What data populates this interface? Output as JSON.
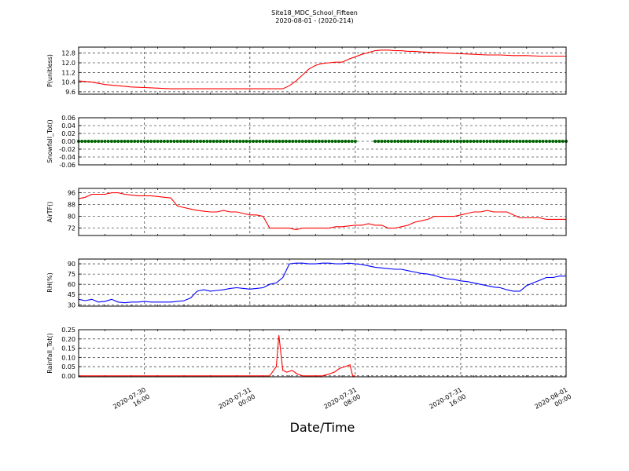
{
  "title": "Site18_MDC_School_Fifteen",
  "subtitle": "2020-08-01 - (2020-214)",
  "xlabel": "Date/Time",
  "x_ticks": [
    {
      "line1": "2020-07-30",
      "line2": "16:00",
      "t": 16
    },
    {
      "line1": "2020-07-31",
      "line2": "00:00",
      "t": 24
    },
    {
      "line1": "2020-07-31",
      "line2": "08:00",
      "t": 32
    },
    {
      "line1": "2020-07-31",
      "line2": "16:00",
      "t": 40
    },
    {
      "line1": "2020-08-01",
      "line2": "00:00",
      "t": 48
    }
  ],
  "chart_data": [
    {
      "type": "line",
      "ylabel": "P(unitless)",
      "xlim": [
        11,
        48
      ],
      "ylim": [
        9.4,
        13.3
      ],
      "yticks": [
        9.6,
        10.4,
        11.2,
        12.0,
        12.8
      ],
      "color": "#ff0000",
      "series": [
        {
          "x": [
            11,
            12,
            13,
            14,
            15,
            16,
            17,
            18,
            19,
            20,
            21,
            22,
            23,
            24,
            25,
            26,
            26.5,
            27,
            27.5,
            28,
            28.5,
            29,
            29.5,
            30,
            30.5,
            31,
            31.5,
            32,
            32.5,
            33,
            33.5,
            34,
            34.5,
            35,
            35.5,
            36,
            36.5,
            37,
            38,
            39,
            40,
            41,
            42,
            43,
            44,
            45,
            46,
            47,
            48
          ],
          "y": [
            10.5,
            10.4,
            10.2,
            10.1,
            10.0,
            9.95,
            9.9,
            9.85,
            9.85,
            9.85,
            9.85,
            9.85,
            9.85,
            9.85,
            9.85,
            9.85,
            9.85,
            10.1,
            10.5,
            11.0,
            11.5,
            11.8,
            11.95,
            12.0,
            12.05,
            12.05,
            12.3,
            12.5,
            12.7,
            12.85,
            13.0,
            13.05,
            13.05,
            13.0,
            13.0,
            12.95,
            12.95,
            12.9,
            12.85,
            12.8,
            12.75,
            12.7,
            12.65,
            12.65,
            12.6,
            12.6,
            12.55,
            12.55,
            12.55
          ]
        }
      ]
    },
    {
      "type": "scatter",
      "ylabel": "Snowfall_Tot()",
      "xlim": [
        11,
        48
      ],
      "ylim": [
        -0.06,
        0.06
      ],
      "yticks": [
        -0.06,
        -0.04,
        -0.02,
        0.0,
        0.02,
        0.04,
        0.06
      ],
      "color": "#006400",
      "series": [
        {
          "x_ranges": [
            [
              11,
              32
            ],
            [
              33.5,
              48
            ]
          ],
          "step": 0.25,
          "y": 0.0
        }
      ]
    },
    {
      "type": "line",
      "ylabel": "AirTF()",
      "xlim": [
        11,
        48
      ],
      "ylim": [
        67,
        99
      ],
      "yticks": [
        72,
        80,
        88,
        96
      ],
      "color": "#ff0000",
      "series": [
        {
          "x": [
            11,
            11.5,
            12,
            12.5,
            13,
            13.5,
            14,
            14.5,
            15,
            15.5,
            16,
            16.5,
            17,
            17.5,
            18,
            18.5,
            19,
            19.5,
            20,
            20.5,
            21,
            21.5,
            22,
            22.5,
            23,
            23.5,
            24,
            24.5,
            25,
            25.5,
            26,
            26.5,
            27,
            27.5,
            28,
            28.5,
            29,
            29.5,
            30,
            30.5,
            31,
            31.5,
            32,
            32.5,
            33,
            33.5,
            34,
            34.5,
            35,
            35.5,
            36,
            36.5,
            37,
            37.5,
            38,
            38.5,
            39,
            39.5,
            40,
            40.5,
            41,
            41.5,
            42,
            42.5,
            43,
            43.5,
            44,
            44.5,
            45,
            45.5,
            46,
            46.5,
            47,
            47.5,
            48
          ],
          "y": [
            92,
            93,
            95,
            95,
            95,
            96,
            96,
            95,
            94.5,
            94,
            94,
            94,
            93.5,
            93,
            92.5,
            87,
            86,
            85,
            84,
            83.5,
            83,
            83,
            84,
            83,
            83,
            82,
            81,
            81,
            80,
            72,
            72,
            72,
            72,
            71,
            72,
            72,
            72,
            72,
            72,
            73,
            73,
            73.5,
            74,
            74,
            75,
            74,
            74,
            72,
            72,
            73,
            74,
            76,
            77,
            78,
            80,
            80,
            80,
            80,
            81,
            82,
            83,
            83,
            84,
            83,
            83,
            83,
            81,
            79,
            79,
            79,
            79,
            78,
            78,
            78,
            78
          ]
        }
      ]
    },
    {
      "type": "line",
      "ylabel": "RH(%)",
      "xlim": [
        11,
        48
      ],
      "ylim": [
        28,
        97
      ],
      "yticks": [
        30,
        45,
        60,
        75,
        90
      ],
      "color": "#0000ff",
      "series": [
        {
          "x": [
            11,
            11.5,
            12,
            12.5,
            13,
            13.5,
            14,
            14.5,
            15,
            15.5,
            16,
            16.5,
            17,
            17.5,
            18,
            18.5,
            19,
            19.5,
            20,
            20.5,
            21,
            21.5,
            22,
            22.5,
            23,
            23.5,
            24,
            24.5,
            25,
            25.5,
            26,
            26.5,
            27,
            27.5,
            28,
            28.5,
            29,
            29.5,
            30,
            30.5,
            31,
            31.5,
            32,
            32.5,
            33,
            33.5,
            34,
            34.5,
            35,
            35.5,
            36,
            36.5,
            37,
            37.5,
            38,
            38.5,
            39,
            39.5,
            40,
            40.5,
            41,
            41.5,
            42,
            42.5,
            43,
            43.5,
            44,
            44.5,
            45,
            45.5,
            46,
            46.5,
            47,
            47.5,
            48
          ],
          "y": [
            38,
            36,
            38,
            34,
            35,
            38,
            34,
            33,
            34,
            34,
            35,
            34,
            34,
            34,
            34,
            35,
            36,
            40,
            50,
            52,
            50,
            51,
            52,
            54,
            55,
            54,
            53,
            54,
            55,
            60,
            62,
            70,
            90,
            91,
            91,
            90,
            90,
            91,
            91,
            90,
            90,
            91,
            90,
            89,
            87,
            85,
            84,
            83,
            82,
            82,
            80,
            78,
            76,
            75,
            73,
            70,
            68,
            67,
            65,
            64,
            62,
            60,
            58,
            56,
            55,
            52,
            50,
            50,
            58,
            62,
            66,
            70,
            70,
            72,
            72
          ]
        }
      ]
    },
    {
      "type": "line",
      "ylabel": "Rainfall_Tot()",
      "xlim": [
        11,
        48
      ],
      "ylim": [
        -0.005,
        0.25
      ],
      "yticks": [
        0.0,
        0.05,
        0.1,
        0.15,
        0.2,
        0.25
      ],
      "color": "#ff0000",
      "series": [
        {
          "x": [
            11,
            25.5,
            26,
            26.2,
            26.5,
            26.8,
            27.2,
            27.6,
            28,
            28.5,
            29,
            29.5,
            30,
            30.4,
            30.8,
            31.2,
            31.6,
            31.8,
            32
          ],
          "y": [
            0,
            0,
            0.05,
            0.22,
            0.03,
            0.02,
            0.03,
            0.01,
            0,
            0,
            0,
            0,
            0.01,
            0.02,
            0.04,
            0.05,
            0.06,
            0,
            0
          ]
        }
      ]
    }
  ]
}
